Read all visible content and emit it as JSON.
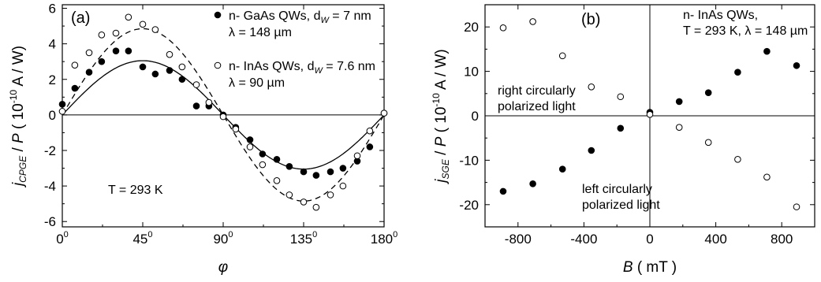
{
  "chart_data": [
    {
      "type": "scatter",
      "panel_label": "(a)",
      "xlabel": "φ",
      "ylabel": {
        "main": "j",
        "sub": "CPGE",
        "rest": " / P ( 10",
        "sup": "-10",
        "unit": " A / W)"
      },
      "xlim": [
        0,
        180
      ],
      "ylim": [
        -6.3,
        6.2
      ],
      "xticks": [
        {
          "value": 0,
          "label": "0",
          "sup": "0"
        },
        {
          "value": 45,
          "label": "45",
          "sup": "0"
        },
        {
          "value": 90,
          "label": "90",
          "sup": "0"
        },
        {
          "value": 135,
          "label": "135",
          "sup": "0"
        },
        {
          "value": 180,
          "label": "180",
          "sup": "0"
        }
      ],
      "yticks": [
        -6,
        -4,
        -2,
        0,
        2,
        4,
        6
      ],
      "annotation": "T = 293 K",
      "legend": [
        {
          "marker": "filled",
          "line1": "n- GaAs QWs, d",
          "line1_sub": "W",
          "line1_end": " = 7 nm",
          "line2": "λ = 148 µm"
        },
        {
          "marker": "open",
          "line1": "n- InAs QWs, d",
          "line1_sub": "W",
          "line1_end": " = 7.6 nm",
          "line2": "λ = 90 µm"
        }
      ],
      "series": [
        {
          "marker": "filled",
          "x": [
            0,
            7,
            15,
            22,
            30,
            37,
            45,
            52,
            60,
            67,
            75,
            82,
            90,
            97,
            105,
            112,
            120,
            127,
            135,
            142,
            150,
            157,
            165,
            172,
            180
          ],
          "y": [
            0.6,
            1.5,
            2.4,
            3.0,
            3.6,
            3.6,
            2.7,
            2.3,
            2.5,
            2.0,
            0.5,
            0.5,
            0.0,
            -0.7,
            -1.4,
            -2.2,
            -2.5,
            -2.9,
            -3.2,
            -3.4,
            -3.2,
            -3.0,
            -2.6,
            -1.8,
            0.1
          ]
        },
        {
          "marker": "open",
          "x": [
            0,
            7,
            15,
            22,
            30,
            37,
            45,
            52,
            60,
            67,
            75,
            82,
            90,
            97,
            105,
            112,
            120,
            127,
            135,
            142,
            150,
            157,
            165,
            172,
            180
          ],
          "y": [
            0.2,
            2.8,
            3.5,
            4.5,
            4.6,
            5.5,
            5.1,
            4.8,
            3.4,
            2.7,
            1.7,
            0.7,
            -0.1,
            -0.8,
            -1.8,
            -2.8,
            -3.7,
            -4.5,
            -4.9,
            -5.2,
            -4.5,
            -4.0,
            -2.3,
            -0.9,
            0.1
          ]
        }
      ],
      "fits": [
        {
          "style": "solid",
          "function": "A*sin(2*phi)",
          "amplitude": 3.05
        },
        {
          "style": "dashed",
          "function": "A*sin(2*phi)",
          "amplitude": 4.85
        }
      ]
    },
    {
      "type": "scatter",
      "panel_label": "(b)",
      "xlabel": "B  ( mT )",
      "ylabel": {
        "main": "j",
        "sub": "SGE",
        "rest": " / P ( 10",
        "sup": "-10",
        "unit": " A / W)"
      },
      "xlim": [
        -1000,
        1000
      ],
      "ylim": [
        -25,
        25
      ],
      "xticks": [
        {
          "value": -800,
          "label": "-800"
        },
        {
          "value": -400,
          "label": "-400"
        },
        {
          "value": 0,
          "label": "0"
        },
        {
          "value": 400,
          "label": "400"
        },
        {
          "value": 800,
          "label": "800"
        }
      ],
      "yticks": [
        -20,
        -10,
        0,
        10,
        20
      ],
      "annotation_top_right": [
        "n- InAs QWs,",
        "T = 293 K, λ = 148 µm"
      ],
      "annotation_right": [
        "right circularly",
        "polarized light"
      ],
      "annotation_left": [
        "left circularly",
        "polarized light"
      ],
      "series": [
        {
          "marker": "filled",
          "x": [
            -890,
            -710,
            -530,
            -355,
            -178,
            0,
            178,
            355,
            533,
            710,
            890
          ],
          "y": [
            -17.0,
            -15.3,
            -12.0,
            -7.8,
            -2.8,
            0.8,
            3.2,
            5.2,
            9.8,
            14.5,
            11.3
          ]
        },
        {
          "marker": "open",
          "x": [
            -890,
            -710,
            -530,
            -355,
            -178,
            0,
            178,
            355,
            533,
            710,
            890
          ],
          "y": [
            19.8,
            21.2,
            13.5,
            6.5,
            4.3,
            0.3,
            -2.6,
            -6.0,
            -9.8,
            -13.8,
            -20.5
          ]
        }
      ]
    }
  ]
}
